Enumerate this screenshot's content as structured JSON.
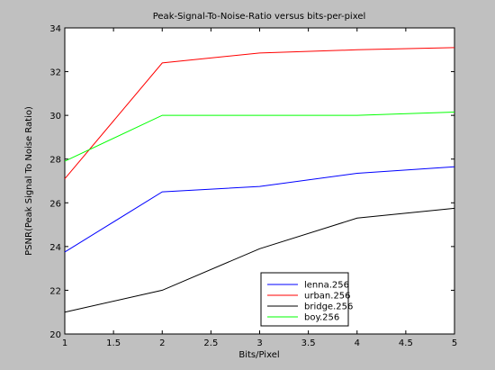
{
  "chart_data": {
    "type": "line",
    "title": "Peak-Signal-To-Noise-Ratio versus bits-per-pixel",
    "xlabel": "Bits/Pixel",
    "ylabel": "PSNR(Peak Signal To Noise Ratio)",
    "xlim": [
      1,
      5
    ],
    "ylim": [
      20,
      34
    ],
    "xticks": [
      1,
      1.5,
      2,
      2.5,
      3,
      3.5,
      4,
      4.5,
      5
    ],
    "yticks": [
      20,
      22,
      24,
      26,
      28,
      30,
      32,
      34
    ],
    "x": [
      1,
      2,
      3,
      4,
      5
    ],
    "grid": false,
    "legend_position": "bottom-center",
    "series": [
      {
        "name": "lenna.256",
        "color": "#0000ff",
        "values": [
          23.75,
          26.5,
          26.75,
          27.35,
          27.65
        ]
      },
      {
        "name": "urban.256",
        "color": "#ff0000",
        "values": [
          27.1,
          32.4,
          32.85,
          33.0,
          33.1
        ]
      },
      {
        "name": "bridge.256",
        "color": "#000000",
        "values": [
          21.0,
          22.0,
          23.9,
          25.3,
          25.75
        ]
      },
      {
        "name": "boy.256",
        "color": "#00ff00",
        "values": [
          27.9,
          30.0,
          30.0,
          30.0,
          30.15
        ]
      }
    ]
  }
}
